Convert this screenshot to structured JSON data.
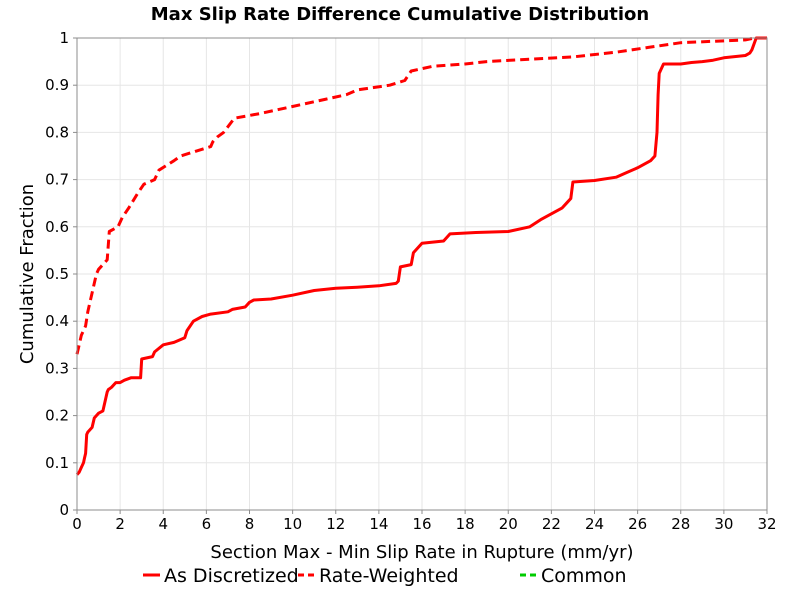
{
  "chart_data": {
    "type": "line",
    "title": "Max Slip Rate Difference Cumulative Distribution",
    "xlabel": "Section Max - Min Slip Rate in Rupture (mm/yr)",
    "ylabel": "Cumulative Fraction",
    "xlim": [
      0,
      32
    ],
    "ylim": [
      0,
      1
    ],
    "xticks": [
      0,
      2,
      4,
      6,
      8,
      10,
      12,
      14,
      16,
      18,
      20,
      22,
      24,
      26,
      28,
      30,
      32
    ],
    "yticks": [
      0,
      0.1,
      0.2,
      0.3,
      0.4,
      0.5,
      0.6,
      0.7,
      0.8,
      0.9,
      1
    ],
    "ytick_labels": [
      "0",
      "0.1",
      "0.2",
      "0.3",
      "0.4",
      "0.5",
      "0.6",
      "0.7",
      "0.8",
      "0.9",
      "1"
    ],
    "grid": true,
    "legend_position": "bottom",
    "series": [
      {
        "name": "As Discretized",
        "color": "#ff0000",
        "style": "solid",
        "x": [
          0.0,
          0.1,
          0.2,
          0.3,
          0.35,
          0.4,
          0.45,
          0.5,
          0.7,
          0.8,
          0.9,
          1.0,
          1.2,
          1.4,
          1.45,
          1.6,
          1.8,
          2.0,
          2.2,
          2.5,
          2.95,
          3.0,
          3.5,
          3.6,
          4.0,
          4.5,
          5.0,
          5.1,
          5.4,
          5.8,
          6.2,
          7.0,
          7.2,
          7.8,
          8.0,
          8.2,
          9.0,
          10.0,
          11.0,
          12.0,
          13.0,
          14.0,
          14.8,
          14.9,
          15.0,
          15.5,
          15.6,
          16.0,
          17.0,
          17.3,
          18.5,
          20.0,
          21.0,
          21.5,
          22.5,
          22.7,
          22.9,
          23.0,
          24.0,
          25.0,
          25.5,
          26.0,
          26.6,
          26.8,
          26.9,
          26.95,
          27.0,
          27.2,
          28.0,
          28.5,
          29.0,
          29.5,
          30.0,
          31.0,
          31.2,
          31.3,
          31.5,
          32.0
        ],
        "y": [
          0.075,
          0.08,
          0.09,
          0.1,
          0.11,
          0.12,
          0.16,
          0.165,
          0.175,
          0.195,
          0.2,
          0.205,
          0.21,
          0.25,
          0.255,
          0.26,
          0.27,
          0.27,
          0.275,
          0.28,
          0.28,
          0.32,
          0.325,
          0.335,
          0.35,
          0.355,
          0.365,
          0.38,
          0.4,
          0.41,
          0.415,
          0.42,
          0.425,
          0.43,
          0.44,
          0.445,
          0.447,
          0.455,
          0.465,
          0.47,
          0.472,
          0.475,
          0.48,
          0.485,
          0.515,
          0.52,
          0.545,
          0.565,
          0.57,
          0.585,
          0.588,
          0.59,
          0.6,
          0.615,
          0.64,
          0.65,
          0.66,
          0.695,
          0.698,
          0.705,
          0.715,
          0.725,
          0.74,
          0.75,
          0.8,
          0.88,
          0.925,
          0.945,
          0.945,
          0.948,
          0.95,
          0.953,
          0.958,
          0.963,
          0.968,
          0.975,
          1.0,
          1.0
        ]
      },
      {
        "name": "Rate-Weighted",
        "color": "#ff0000",
        "style": "dashed",
        "x": [
          0.0,
          0.1,
          0.2,
          0.3,
          0.4,
          0.5,
          0.7,
          0.9,
          1.0,
          1.2,
          1.4,
          1.5,
          1.9,
          2.1,
          2.4,
          2.8,
          3.1,
          3.6,
          3.8,
          4.5,
          4.8,
          5.5,
          6.2,
          6.3,
          6.5,
          6.8,
          7.3,
          8.5,
          9.5,
          10.5,
          11.5,
          12.5,
          13.0,
          14.5,
          15.2,
          15.5,
          16.5,
          18.0,
          19.0,
          21.0,
          23.0,
          25.0,
          26.5,
          28.0,
          29.5,
          31.0,
          31.4,
          32.0
        ],
        "y": [
          0.33,
          0.35,
          0.37,
          0.38,
          0.39,
          0.42,
          0.46,
          0.5,
          0.51,
          0.52,
          0.53,
          0.59,
          0.6,
          0.62,
          0.64,
          0.67,
          0.69,
          0.7,
          0.72,
          0.74,
          0.75,
          0.76,
          0.77,
          0.78,
          0.79,
          0.8,
          0.83,
          0.84,
          0.85,
          0.86,
          0.87,
          0.88,
          0.89,
          0.9,
          0.91,
          0.93,
          0.94,
          0.945,
          0.95,
          0.955,
          0.96,
          0.97,
          0.98,
          0.99,
          0.993,
          0.996,
          1.0,
          1.0
        ]
      },
      {
        "name": "Common",
        "color": "#00cc00",
        "style": "dashed",
        "x": [],
        "y": []
      }
    ]
  }
}
